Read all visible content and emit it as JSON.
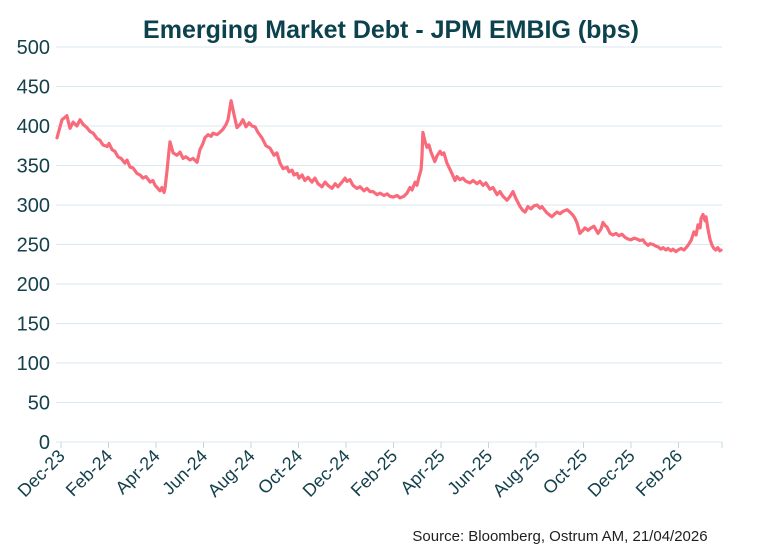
{
  "page": {
    "background": "#ffffff"
  },
  "source": {
    "text": "Source: Bloomberg,  Ostrum AM, 21/04/2026"
  },
  "colors": {
    "line": "#f96a7b",
    "grid": "#d9eaf1",
    "tick": "#c2d8e0",
    "axis_text": "#14414c",
    "title": "#0c424e",
    "source_text": "#1f1f1f"
  },
  "chart_data": {
    "type": "line",
    "title": "Emerging Market Debt - JPM EMBIG (bps)",
    "xlabel": "",
    "ylabel": "",
    "ylim": [
      0,
      500
    ],
    "ytick_step": 50,
    "grid": "horizontal",
    "legend": "none",
    "x_axis": {
      "unit": "months since Dec-2023 tick",
      "tick_interval_months": 2,
      "tick_labels": [
        "Dec-23",
        "Feb-24",
        "Apr-24",
        "Jun-24",
        "Aug-24",
        "Oct-24",
        "Dec-24",
        "Feb-25",
        "Apr-25",
        "Jun-25",
        "Aug-25",
        "Oct-25",
        "Dec-25",
        "Feb-26"
      ],
      "label_rotation_deg": -45
    },
    "series": [
      {
        "name": "JPM EMBIG spread (bps)",
        "color": "#f96a7b",
        "points": [
          [
            -0.17,
            385
          ],
          [
            0.04,
            408
          ],
          [
            0.25,
            413
          ],
          [
            0.38,
            397
          ],
          [
            0.51,
            405
          ],
          [
            0.67,
            400
          ],
          [
            0.8,
            408
          ],
          [
            0.93,
            402
          ],
          [
            1.09,
            398
          ],
          [
            1.22,
            393
          ],
          [
            1.35,
            391
          ],
          [
            1.52,
            384
          ],
          [
            1.64,
            382
          ],
          [
            1.77,
            376
          ],
          [
            1.94,
            374
          ],
          [
            2.02,
            378
          ],
          [
            2.15,
            370
          ],
          [
            2.27,
            368
          ],
          [
            2.4,
            361
          ],
          [
            2.53,
            359
          ],
          [
            2.69,
            353
          ],
          [
            2.78,
            357
          ],
          [
            2.91,
            348
          ],
          [
            3.03,
            347
          ],
          [
            3.2,
            340
          ],
          [
            3.33,
            338
          ],
          [
            3.45,
            334
          ],
          [
            3.58,
            336
          ],
          [
            3.75,
            329
          ],
          [
            3.87,
            331
          ],
          [
            3.96,
            325
          ],
          [
            4.08,
            321
          ],
          [
            4.17,
            318
          ],
          [
            4.25,
            322
          ],
          [
            4.34,
            316
          ],
          [
            4.38,
            321
          ],
          [
            4.46,
            342
          ],
          [
            4.55,
            370
          ],
          [
            4.59,
            380
          ],
          [
            4.72,
            366
          ],
          [
            4.88,
            363
          ],
          [
            5.01,
            367
          ],
          [
            5.14,
            359
          ],
          [
            5.26,
            361
          ],
          [
            5.43,
            357
          ],
          [
            5.56,
            359
          ],
          [
            5.73,
            354
          ],
          [
            5.85,
            370
          ],
          [
            5.98,
            378
          ],
          [
            6.06,
            385
          ],
          [
            6.19,
            389
          ],
          [
            6.32,
            387
          ],
          [
            6.4,
            391
          ],
          [
            6.57,
            389
          ],
          [
            6.69,
            392
          ],
          [
            6.82,
            396
          ],
          [
            6.95,
            402
          ],
          [
            7.03,
            408
          ],
          [
            7.16,
            432
          ],
          [
            7.28,
            415
          ],
          [
            7.41,
            398
          ],
          [
            7.54,
            402
          ],
          [
            7.66,
            408
          ],
          [
            7.79,
            399
          ],
          [
            7.92,
            404
          ],
          [
            8.04,
            400
          ],
          [
            8.17,
            399
          ],
          [
            8.29,
            392
          ],
          [
            8.46,
            385
          ],
          [
            8.63,
            375
          ],
          [
            8.8,
            372
          ],
          [
            8.97,
            363
          ],
          [
            9.09,
            366
          ],
          [
            9.22,
            353
          ],
          [
            9.35,
            346
          ],
          [
            9.52,
            348
          ],
          [
            9.6,
            342
          ],
          [
            9.73,
            344
          ],
          [
            9.81,
            338
          ],
          [
            9.94,
            340
          ],
          [
            10.02,
            334
          ],
          [
            10.15,
            338
          ],
          [
            10.27,
            331
          ],
          [
            10.4,
            335
          ],
          [
            10.57,
            329
          ],
          [
            10.69,
            334
          ],
          [
            10.82,
            327
          ],
          [
            10.99,
            323
          ],
          [
            11.12,
            329
          ],
          [
            11.24,
            325
          ],
          [
            11.41,
            321
          ],
          [
            11.54,
            327
          ],
          [
            11.66,
            323
          ],
          [
            11.83,
            329
          ],
          [
            11.96,
            334
          ],
          [
            12.04,
            330
          ],
          [
            12.17,
            332
          ],
          [
            12.29,
            325
          ],
          [
            12.46,
            321
          ],
          [
            12.59,
            323
          ],
          [
            12.76,
            318
          ],
          [
            12.88,
            321
          ],
          [
            13.01,
            317
          ],
          [
            13.14,
            317
          ],
          [
            13.31,
            313
          ],
          [
            13.43,
            315
          ],
          [
            13.6,
            312
          ],
          [
            13.73,
            314
          ],
          [
            13.85,
            311
          ],
          [
            13.98,
            310
          ],
          [
            14.15,
            312
          ],
          [
            14.27,
            309
          ],
          [
            14.44,
            311
          ],
          [
            14.57,
            315
          ],
          [
            14.69,
            322
          ],
          [
            14.78,
            319
          ],
          [
            14.91,
            329
          ],
          [
            14.99,
            325
          ],
          [
            15.07,
            335
          ],
          [
            15.16,
            345
          ],
          [
            15.2,
            362
          ],
          [
            15.24,
            392
          ],
          [
            15.33,
            380
          ],
          [
            15.41,
            373
          ],
          [
            15.49,
            376
          ],
          [
            15.58,
            367
          ],
          [
            15.66,
            361
          ],
          [
            15.74,
            355
          ],
          [
            15.83,
            362
          ],
          [
            15.96,
            368
          ],
          [
            16.04,
            364
          ],
          [
            16.12,
            366
          ],
          [
            16.25,
            353
          ],
          [
            16.38,
            345
          ],
          [
            16.46,
            340
          ],
          [
            16.59,
            331
          ],
          [
            16.67,
            336
          ],
          [
            16.8,
            332
          ],
          [
            16.92,
            334
          ],
          [
            17.05,
            330
          ],
          [
            17.22,
            328
          ],
          [
            17.35,
            331
          ],
          [
            17.52,
            327
          ],
          [
            17.64,
            330
          ],
          [
            17.77,
            325
          ],
          [
            17.89,
            328
          ],
          [
            18.06,
            320
          ],
          [
            18.19,
            322
          ],
          [
            18.36,
            313
          ],
          [
            18.48,
            317
          ],
          [
            18.61,
            311
          ],
          [
            18.78,
            306
          ],
          [
            18.91,
            311
          ],
          [
            19.03,
            317
          ],
          [
            19.16,
            308
          ],
          [
            19.33,
            298
          ],
          [
            19.45,
            293
          ],
          [
            19.54,
            291
          ],
          [
            19.66,
            298
          ],
          [
            19.79,
            295
          ],
          [
            19.92,
            299
          ],
          [
            20.04,
            300
          ],
          [
            20.17,
            296
          ],
          [
            20.25,
            298
          ],
          [
            20.38,
            293
          ],
          [
            20.46,
            290
          ],
          [
            20.59,
            287
          ],
          [
            20.67,
            285
          ],
          [
            20.8,
            289
          ],
          [
            20.88,
            291
          ],
          [
            21.01,
            289
          ],
          [
            21.14,
            292
          ],
          [
            21.31,
            294
          ],
          [
            21.43,
            291
          ],
          [
            21.56,
            287
          ],
          [
            21.64,
            283
          ],
          [
            21.73,
            277
          ],
          [
            21.85,
            264
          ],
          [
            21.98,
            268
          ],
          [
            22.06,
            271
          ],
          [
            22.19,
            268
          ],
          [
            22.32,
            271
          ],
          [
            22.44,
            273
          ],
          [
            22.61,
            264
          ],
          [
            22.74,
            270
          ],
          [
            22.82,
            278
          ],
          [
            22.91,
            274
          ],
          [
            22.99,
            272
          ],
          [
            23.12,
            264
          ],
          [
            23.24,
            262
          ],
          [
            23.37,
            264
          ],
          [
            23.49,
            261
          ],
          [
            23.62,
            263
          ],
          [
            23.75,
            259
          ],
          [
            23.87,
            257
          ],
          [
            24.0,
            256
          ],
          [
            24.13,
            258
          ],
          [
            24.25,
            257
          ],
          [
            24.38,
            255
          ],
          [
            24.51,
            256
          ],
          [
            24.59,
            252
          ],
          [
            24.72,
            249
          ],
          [
            24.8,
            251
          ],
          [
            24.93,
            250
          ],
          [
            25.05,
            248
          ],
          [
            25.14,
            247
          ],
          [
            25.26,
            244
          ],
          [
            25.35,
            246
          ],
          [
            25.47,
            243
          ],
          [
            25.56,
            245
          ],
          [
            25.68,
            242
          ],
          [
            25.77,
            244
          ],
          [
            25.89,
            241
          ],
          [
            25.98,
            243
          ],
          [
            26.11,
            245
          ],
          [
            26.23,
            243
          ],
          [
            26.32,
            246
          ],
          [
            26.4,
            249
          ],
          [
            26.53,
            255
          ],
          [
            26.65,
            266
          ],
          [
            26.74,
            262
          ],
          [
            26.82,
            275
          ],
          [
            26.91,
            271
          ],
          [
            26.95,
            283
          ],
          [
            27.03,
            288
          ],
          [
            27.12,
            280
          ],
          [
            27.16,
            285
          ],
          [
            27.24,
            270
          ],
          [
            27.32,
            257
          ],
          [
            27.41,
            249
          ],
          [
            27.49,
            245
          ],
          [
            27.57,
            243
          ],
          [
            27.65,
            246
          ],
          [
            27.74,
            242
          ],
          [
            27.79,
            243
          ]
        ]
      }
    ]
  }
}
